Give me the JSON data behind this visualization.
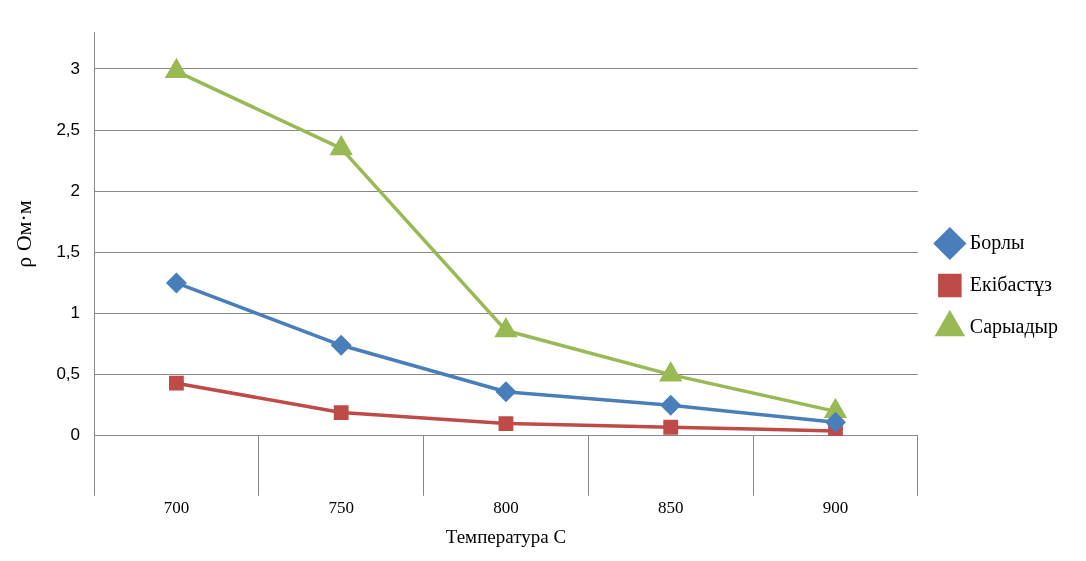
{
  "chart_data": {
    "type": "line",
    "xlabel": "Температура С",
    "ylabel": "ρ Ом·м",
    "categories": [
      "700",
      "750",
      "800",
      "850",
      "900"
    ],
    "series": [
      {
        "name": "Борлы",
        "color": "#4a7ebb",
        "marker": "diamond",
        "values": [
          1.25,
          0.74,
          0.36,
          0.25,
          0.11
        ]
      },
      {
        "name": "Екібастұз",
        "color": "#be4b48",
        "marker": "square",
        "values": [
          0.43,
          0.19,
          0.1,
          0.07,
          0.04
        ]
      },
      {
        "name": "Сарыадыр",
        "color": "#98b954",
        "marker": "triangle",
        "values": [
          2.98,
          2.35,
          0.86,
          0.5,
          0.2
        ]
      }
    ],
    "ylim": [
      0,
      3.3
    ],
    "yticks": [
      {
        "value": 0,
        "label": "0"
      },
      {
        "value": 0.5,
        "label": "0,5"
      },
      {
        "value": 1,
        "label": "1"
      },
      {
        "value": 1.5,
        "label": "1,5"
      },
      {
        "value": 2,
        "label": "2"
      },
      {
        "value": 2.5,
        "label": "2,5"
      },
      {
        "value": 3,
        "label": "3"
      }
    ],
    "grid": "y",
    "legend": "right",
    "line_style": "solid"
  }
}
